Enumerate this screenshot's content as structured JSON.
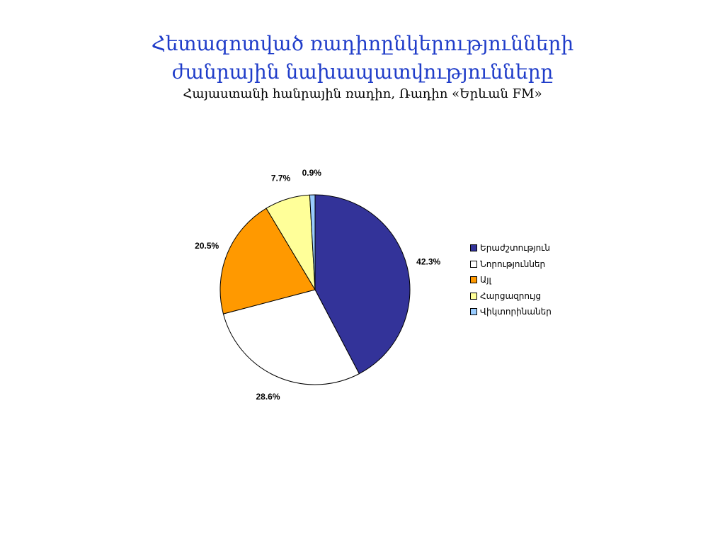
{
  "title": {
    "line1": "Հետազոտված ռադիոընկերությունների",
    "line2": "ժանրային նախապատվությունները",
    "subtitle": "Հայաստանի հանրային ռադիո, Ռադիո «Երևան FM»"
  },
  "chart_data": {
    "type": "pie",
    "slices": [
      {
        "name": "Երաժշտություն",
        "value": 42.3,
        "label": "42.3%",
        "color": "#333399"
      },
      {
        "name": "Նորություններ",
        "value": 28.6,
        "label": "28.6%",
        "color": "#ffffff"
      },
      {
        "name": "Այլ",
        "value": 20.5,
        "label": "20.5%",
        "color": "#ff9900"
      },
      {
        "name": "Հարցազրույց",
        "value": 7.7,
        "label": "7.7%",
        "color": "#ffff99"
      },
      {
        "name": "Վիկտորինաներ",
        "value": 0.9,
        "label": "0.9%",
        "color": "#99ccff"
      }
    ],
    "start": "12 o'clock",
    "direction": "clockwise",
    "legend_position": "right"
  }
}
